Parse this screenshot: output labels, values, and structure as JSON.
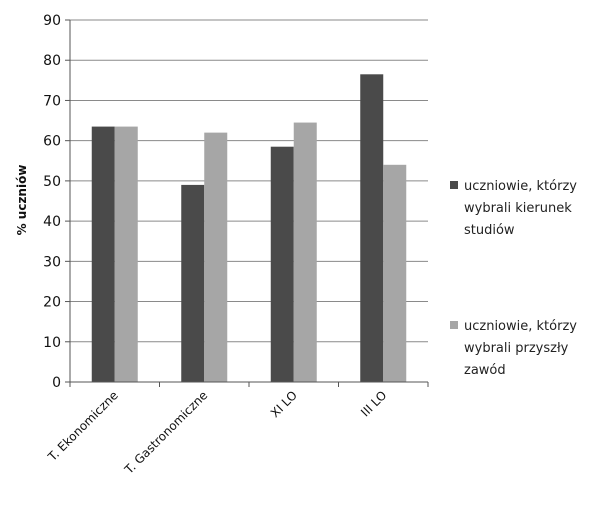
{
  "chart_data": {
    "type": "bar",
    "title": "",
    "xlabel": "",
    "ylabel": "% uczniów",
    "ylim": [
      0,
      90
    ],
    "yticks": [
      0,
      10,
      20,
      30,
      40,
      50,
      60,
      70,
      80,
      90
    ],
    "grid": true,
    "legend_position": "right",
    "categories": [
      "T. Ekonomiczne",
      "T. Gastronomiczne",
      "XI LO",
      "III LO"
    ],
    "series": [
      {
        "name": "uczniowie, którzy wybrali kierunek studiów",
        "legend_lines": [
          "uczniowie, którzy",
          "wybrali kierunek",
          "studiów"
        ],
        "color": "#4a4a4a",
        "values": [
          63.5,
          49,
          58.5,
          76.5
        ]
      },
      {
        "name": "uczniowie, którzy wybrali przyszły zawód",
        "legend_lines": [
          "uczniowie, którzy",
          "wybrali przyszły",
          "zawód"
        ],
        "color": "#a6a6a6",
        "values": [
          63.5,
          62,
          64.5,
          54
        ]
      }
    ]
  }
}
